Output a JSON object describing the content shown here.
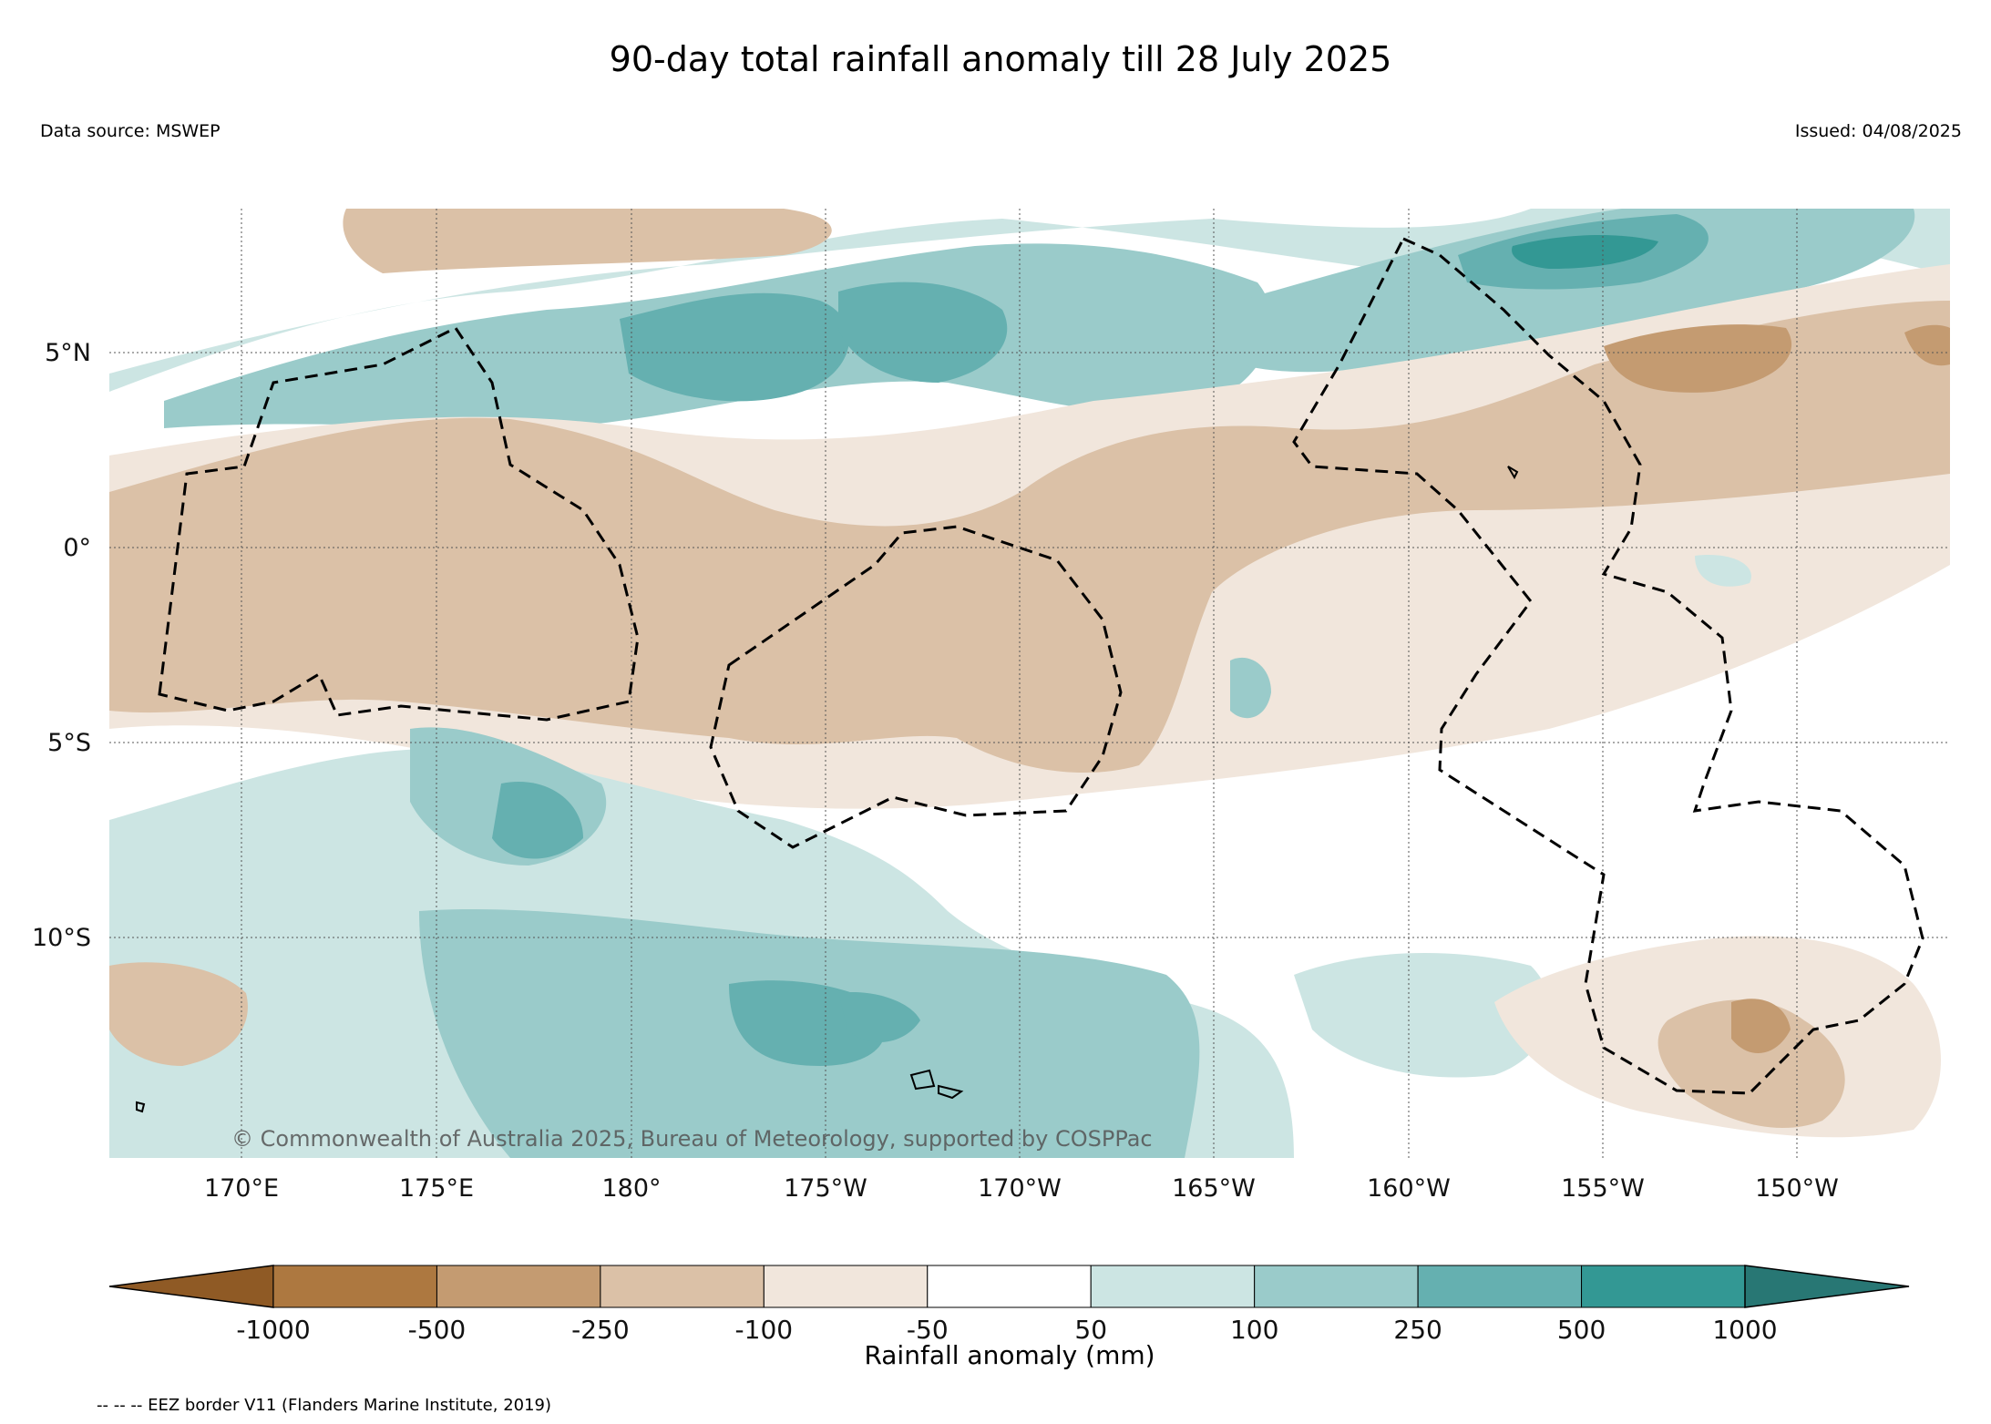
{
  "title": "90-day total rainfall anomaly till 28 July 2025",
  "data_source": "Data source: MSWEP",
  "issued": "Issued: 04/08/2025",
  "copyright": "© Commonwealth of Australia 2025, Bureau of Meteorology, supported by COSPPac",
  "eez_note": "-- -- -- EEZ border V11 (Flanders Marine Institute, 2019)",
  "map": {
    "lon_labels": [
      "170°E",
      "175°E",
      "180°",
      "175°W",
      "170°W",
      "165°W",
      "160°W",
      "155°W",
      "150°W"
    ],
    "lat_labels": [
      "5°N",
      "0°",
      "5°S",
      "10°S"
    ]
  },
  "colorbar": {
    "label": "Rainfall anomaly (mm)",
    "ticks": [
      "-1000",
      "-500",
      "-250",
      "-100",
      "-50",
      "50",
      "100",
      "250",
      "500",
      "1000"
    ],
    "colors": [
      "#8f5a25",
      "#ad7840",
      "#c49b71",
      "#dbc1a7",
      "#f1e6dc",
      "#ffffff",
      "#cce5e3",
      "#9acbca",
      "#65b0b0",
      "#339894",
      "#287774"
    ]
  },
  "legend_colors": {
    "dry_strong": "#c49b71",
    "dry": "#dbc1a7",
    "dry_weak": "#f1e6dc",
    "wet_weak": "#cce5e3",
    "wet": "#9acbca",
    "wet_strong": "#65b0b0"
  }
}
